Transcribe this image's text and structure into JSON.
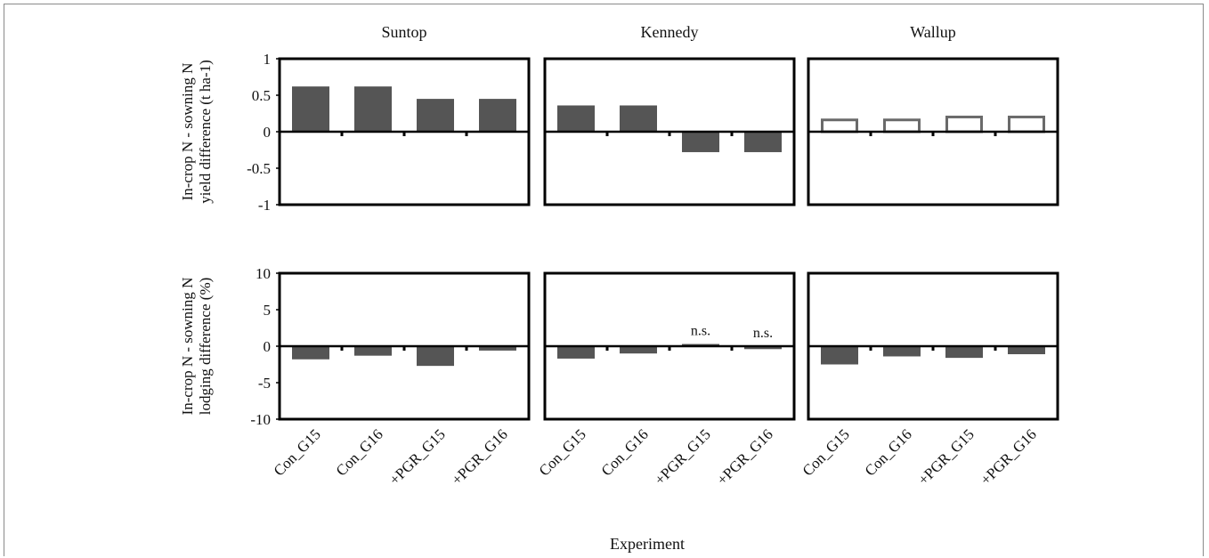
{
  "chart_data": {
    "type": "bar",
    "xlabel": "Experiment",
    "categories": [
      "Con_G15",
      "Con_G16",
      "+PGR_G15",
      "+PGR_G16"
    ],
    "panels": [
      "Suntop",
      "Kennedy",
      "Wallup"
    ],
    "rows": [
      {
        "ylabel_lines": [
          "In-crop N - sowning N",
          "yield difference (t ha-1)"
        ],
        "ylim": [
          -1,
          1
        ],
        "yticks": [
          1,
          0.5,
          0,
          -0.5,
          -1
        ],
        "ytick_labels": [
          "1",
          "0.5",
          "0",
          "-0.5",
          "-1"
        ],
        "series": [
          {
            "panel": "Suntop",
            "values": [
              0.62,
              0.62,
              0.45,
              0.45
            ],
            "style": "filled"
          },
          {
            "panel": "Kennedy",
            "values": [
              0.36,
              0.36,
              -0.28,
              -0.28
            ],
            "style": "filled"
          },
          {
            "panel": "Wallup",
            "values": [
              0.18,
              0.18,
              0.22,
              0.22
            ],
            "style": "outline"
          }
        ]
      },
      {
        "ylabel_lines": [
          "In-crop N - sowning N",
          "lodging difference (%)"
        ],
        "ylim": [
          -10,
          10
        ],
        "yticks": [
          10,
          5,
          0,
          -5,
          -10
        ],
        "ytick_labels": [
          "10",
          "5",
          "0",
          "-5",
          "-10"
        ],
        "series": [
          {
            "panel": "Suntop",
            "values": [
              -1.8,
              -1.3,
              -2.7,
              -0.6
            ],
            "style": "filled"
          },
          {
            "panel": "Kennedy",
            "values": [
              -1.7,
              -1.0,
              0.3,
              -0.4
            ],
            "style": "filled",
            "annotations": [
              null,
              null,
              "n.s.",
              "n.s."
            ]
          },
          {
            "panel": "Wallup",
            "values": [
              -2.5,
              -1.4,
              -1.6,
              -1.1
            ],
            "style": "filled"
          }
        ]
      }
    ],
    "colors": {
      "bar_fill": "#555555",
      "outline_bar": "#6a6a6a",
      "axis": "#000000"
    }
  }
}
